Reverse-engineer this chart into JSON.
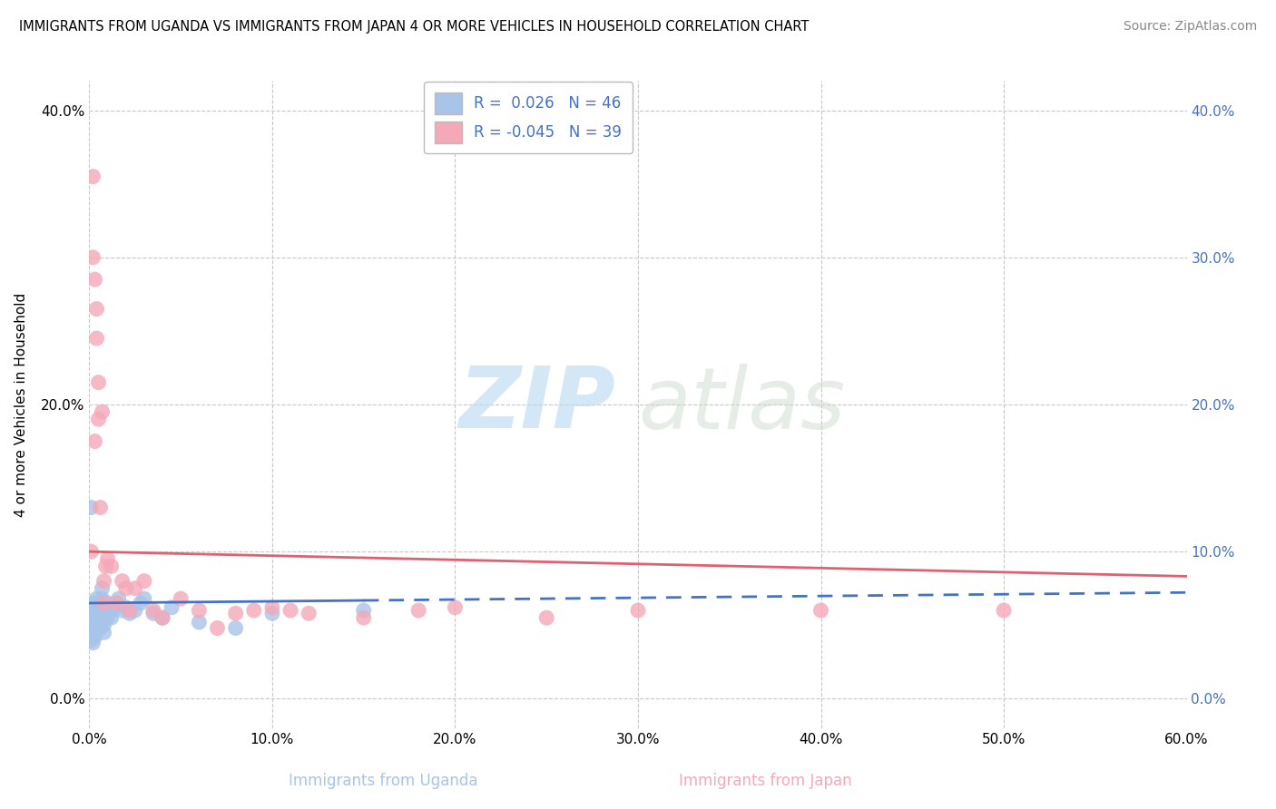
{
  "title": "IMMIGRANTS FROM UGANDA VS IMMIGRANTS FROM JAPAN 4 OR MORE VEHICLES IN HOUSEHOLD CORRELATION CHART",
  "source": "Source: ZipAtlas.com",
  "xlabel_uganda": "Immigrants from Uganda",
  "xlabel_japan": "Immigrants from Japan",
  "ylabel": "4 or more Vehicles in Household",
  "xlim": [
    0.0,
    0.6
  ],
  "ylim": [
    -0.02,
    0.42
  ],
  "xticks": [
    0.0,
    0.1,
    0.2,
    0.3,
    0.4,
    0.5,
    0.6
  ],
  "xticklabels": [
    "0.0%",
    "10.0%",
    "20.0%",
    "30.0%",
    "40.0%",
    "50.0%",
    "60.0%"
  ],
  "yticks": [
    0.0,
    0.1,
    0.2,
    0.3,
    0.4
  ],
  "yticklabels_left": [
    "0.0%",
    "",
    "20.0%",
    "",
    "40.0%"
  ],
  "yticklabels_right": [
    "0.0%",
    "10.0%",
    "20.0%",
    "30.0%",
    "40.0%"
  ],
  "R_uganda": 0.026,
  "N_uganda": 46,
  "R_japan": -0.045,
  "N_japan": 39,
  "color_uganda": "#a8c4e8",
  "color_japan": "#f4a8b8",
  "trendline_color_uganda": "#4472c4",
  "trendline_color_japan": "#e06070",
  "legend_text_color": "#4472c4",
  "right_tick_color": "#4472c4",
  "watermark_zip": "ZIP",
  "watermark_atlas": "atlas",
  "grid_color": "#c8c8c8",
  "uganda_x": [
    0.001,
    0.001,
    0.002,
    0.002,
    0.003,
    0.003,
    0.003,
    0.003,
    0.004,
    0.004,
    0.004,
    0.005,
    0.005,
    0.005,
    0.006,
    0.006,
    0.006,
    0.007,
    0.007,
    0.008,
    0.008,
    0.008,
    0.009,
    0.009,
    0.01,
    0.01,
    0.011,
    0.012,
    0.013,
    0.015,
    0.016,
    0.018,
    0.02,
    0.022,
    0.025,
    0.028,
    0.03,
    0.035,
    0.04,
    0.045,
    0.06,
    0.08,
    0.1,
    0.15,
    0.001,
    0.002
  ],
  "uganda_y": [
    0.13,
    0.06,
    0.065,
    0.055,
    0.05,
    0.055,
    0.048,
    0.042,
    0.068,
    0.06,
    0.058,
    0.06,
    0.062,
    0.065,
    0.055,
    0.05,
    0.048,
    0.075,
    0.068,
    0.058,
    0.05,
    0.045,
    0.06,
    0.055,
    0.065,
    0.055,
    0.06,
    0.055,
    0.06,
    0.065,
    0.068,
    0.06,
    0.062,
    0.058,
    0.06,
    0.065,
    0.068,
    0.058,
    0.055,
    0.062,
    0.052,
    0.048,
    0.058,
    0.06,
    0.04,
    0.038
  ],
  "japan_x": [
    0.001,
    0.002,
    0.002,
    0.003,
    0.003,
    0.004,
    0.004,
    0.005,
    0.005,
    0.006,
    0.007,
    0.008,
    0.008,
    0.009,
    0.01,
    0.012,
    0.015,
    0.018,
    0.02,
    0.022,
    0.025,
    0.03,
    0.035,
    0.04,
    0.05,
    0.06,
    0.07,
    0.08,
    0.09,
    0.1,
    0.11,
    0.12,
    0.15,
    0.18,
    0.2,
    0.25,
    0.3,
    0.4,
    0.5
  ],
  "japan_y": [
    0.1,
    0.355,
    0.3,
    0.285,
    0.175,
    0.245,
    0.265,
    0.215,
    0.19,
    0.13,
    0.195,
    0.065,
    0.08,
    0.09,
    0.095,
    0.09,
    0.065,
    0.08,
    0.075,
    0.06,
    0.075,
    0.08,
    0.06,
    0.055,
    0.068,
    0.06,
    0.048,
    0.058,
    0.06,
    0.062,
    0.06,
    0.058,
    0.055,
    0.06,
    0.062,
    0.055,
    0.06,
    0.06,
    0.06
  ]
}
